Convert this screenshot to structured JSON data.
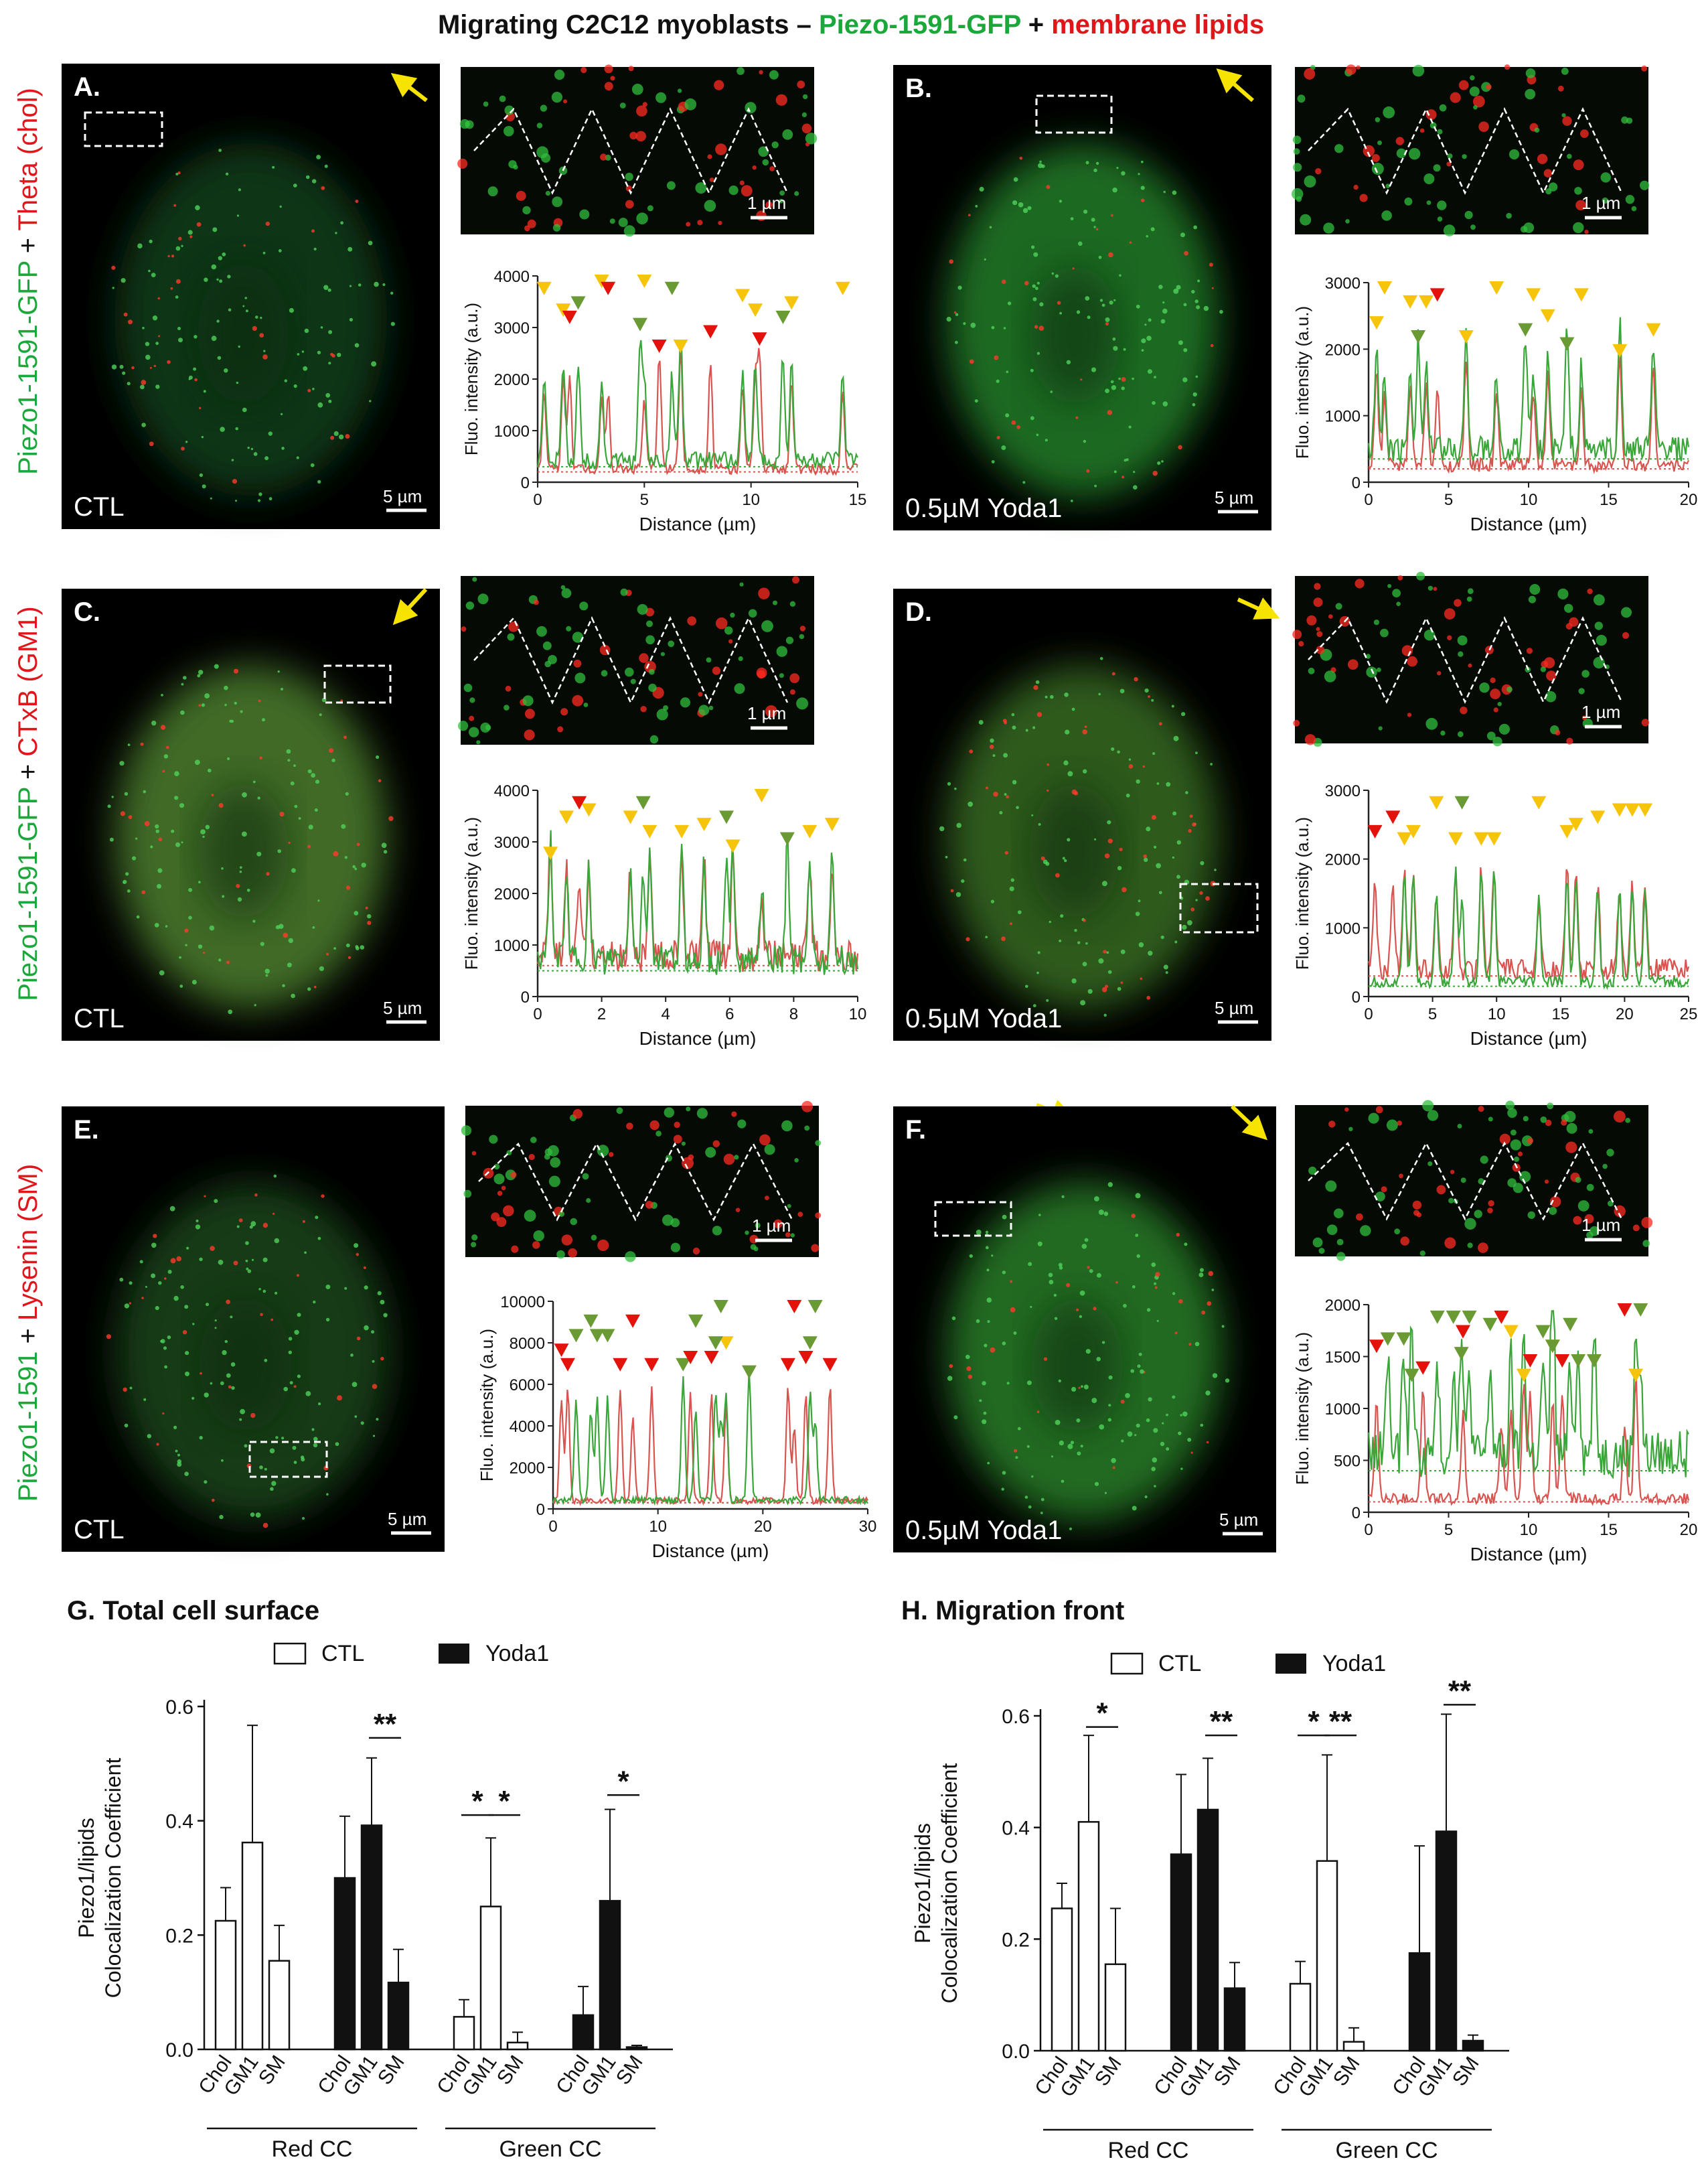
{
  "figure": {
    "title_parts": [
      {
        "text": "Migrating C2C12 myoblasts – ",
        "color": "#111111"
      },
      {
        "text": "Piezo-1591-GFP",
        "color": "#1aa83a"
      },
      {
        "text": " + ",
        "color": "#111111"
      },
      {
        "text": "membrane lipids",
        "color": "#e0161b"
      }
    ],
    "colors": {
      "green": "#2fa83c",
      "red": "#e0161b",
      "yellow": "#f6c40a",
      "marker_green": "#6a9a34",
      "marker_red": "#e3120b",
      "profile_red": "#d9534f",
      "profile_green": "#3aa63a"
    }
  },
  "row_labels": [
    {
      "parts": [
        {
          "text": "Piezo1-1591-GFP",
          "color": "#1aa83a"
        },
        {
          "text": " + ",
          "color": "#111111"
        },
        {
          "text": "Theta (chol)",
          "color": "#e0161b"
        }
      ]
    },
    {
      "parts": [
        {
          "text": "Piezo1-1591-GFP",
          "color": "#1aa83a"
        },
        {
          "text": " + ",
          "color": "#111111"
        },
        {
          "text": "CTxB (GM1)",
          "color": "#e0161b"
        }
      ]
    },
    {
      "parts": [
        {
          "text": "Piezo1-1591",
          "color": "#1aa83a"
        },
        {
          "text": " + ",
          "color": "#111111"
        },
        {
          "text": "Lysenin (SM)",
          "color": "#e0161b"
        }
      ]
    }
  ],
  "panels": [
    {
      "id": "A",
      "letter": "A.",
      "condition": "CTL",
      "scale_main": "5 µm",
      "scale_inset": "1 µm",
      "tint": "#0f3514"
    },
    {
      "id": "B",
      "letter": "B.",
      "condition": "0.5µM Yoda1",
      "scale_main": "5 µm",
      "scale_inset": "1 µm",
      "tint": "#1d6a23"
    },
    {
      "id": "C",
      "letter": "C.",
      "condition": "CTL",
      "scale_main": "5 µm",
      "scale_inset": "1 µm",
      "tint": "#3f6a26"
    },
    {
      "id": "D",
      "letter": "D.",
      "condition": "0.5µM Yoda1",
      "scale_main": "5 µm",
      "scale_inset": "1 µm",
      "tint": "#2f5a1f"
    },
    {
      "id": "E",
      "letter": "E.",
      "condition": "CTL",
      "scale_main": "5 µm",
      "scale_inset": "1 µm",
      "tint": "#123a16"
    },
    {
      "id": "F",
      "letter": "F.",
      "condition": "0.5µM Yoda1",
      "scale_main": "5 µm",
      "scale_inset": "1 µm",
      "tint": "#226a22"
    }
  ],
  "chart_data": [
    {
      "id": "profile-A",
      "type": "line",
      "xlabel": "Distance (µm)",
      "ylabel": "Fluo. intensity (a.u.)",
      "xlim": [
        0,
        15
      ],
      "ylim": [
        0,
        4000
      ],
      "xticks": [
        0,
        5,
        10,
        15
      ],
      "yticks": [
        0,
        1000,
        2000,
        3000,
        4000
      ],
      "threshold_green": 300,
      "threshold_red": 200,
      "markers_yellow": [
        0.3,
        1.2,
        3,
        5,
        6.7,
        9.6,
        10.2,
        11.9,
        14.3
      ],
      "markers_green": [
        1.9,
        4.8,
        6.3,
        11.5
      ],
      "markers_red": [
        1.5,
        3.3,
        5.7,
        8.1,
        10.4
      ]
    },
    {
      "id": "profile-B",
      "type": "line",
      "xlabel": "Distance (µm)",
      "ylabel": "Fluo. intensity (a.u.)",
      "xlim": [
        0,
        20
      ],
      "ylim": [
        0,
        3000
      ],
      "xticks": [
        0,
        5,
        10,
        15,
        20
      ],
      "yticks": [
        0,
        1000,
        2000,
        3000
      ],
      "threshold_green": 350,
      "threshold_red": 200,
      "markers_yellow": [
        0.5,
        1,
        2.6,
        3.6,
        6.1,
        8,
        10.3,
        11.2,
        13.3,
        15.7,
        17.8
      ],
      "markers_green": [
        3.1,
        9.8,
        12.4
      ],
      "markers_red": [
        4.3
      ]
    },
    {
      "id": "profile-C",
      "type": "line",
      "xlabel": "Distance (µm)",
      "ylabel": "Fluo. intensity (a.u.)",
      "xlim": [
        0,
        10
      ],
      "ylim": [
        0,
        4000
      ],
      "xticks": [
        0,
        2,
        4,
        6,
        8,
        10
      ],
      "yticks": [
        0,
        1000,
        2000,
        3000,
        4000
      ],
      "threshold_green": 500,
      "threshold_red": 600,
      "markers_yellow": [
        0.4,
        0.9,
        1.6,
        2.9,
        3.5,
        4.5,
        5.2,
        6.1,
        7,
        8.5,
        9.2
      ],
      "markers_green": [
        3.3,
        5.9,
        7.8
      ],
      "markers_red": [
        1.3
      ]
    },
    {
      "id": "profile-D",
      "type": "line",
      "xlabel": "Distance (µm)",
      "ylabel": "Fluo. intensity (a.u.)",
      "xlim": [
        0,
        25
      ],
      "ylim": [
        0,
        3000
      ],
      "xticks": [
        0,
        5,
        10,
        15,
        20,
        25
      ],
      "yticks": [
        0,
        1000,
        2000,
        3000
      ],
      "threshold_green": 150,
      "threshold_red": 300,
      "markers_yellow": [
        2.8,
        3.5,
        5.3,
        6.8,
        8.8,
        9.8,
        13.3,
        15.5,
        16.2,
        17.9,
        19.6,
        20.6,
        21.6
      ],
      "markers_green": [
        7.3
      ],
      "markers_red": [
        0.5,
        1.9
      ]
    },
    {
      "id": "profile-E",
      "type": "line",
      "xlabel": "Distance (µm)",
      "ylabel": "Fluo. intensity (a.u.)",
      "xlim": [
        0,
        30
      ],
      "ylim": [
        0,
        10000
      ],
      "xticks": [
        0,
        10,
        20,
        30
      ],
      "yticks": [
        0,
        2000,
        4000,
        6000,
        8000,
        10000
      ],
      "threshold_green": 300,
      "threshold_red": 300,
      "markers_yellow": [
        16.5
      ],
      "markers_green": [
        2.2,
        3.6,
        4.2,
        5.2,
        12.4,
        13.6,
        15.5,
        16,
        18.7,
        24.5,
        25
      ],
      "markers_red": [
        0.8,
        1.4,
        6.4,
        7.6,
        9.4,
        13.1,
        15.1,
        22.4,
        23,
        24.1,
        26.4
      ]
    },
    {
      "id": "profile-F",
      "type": "line",
      "xlabel": "Distance (µm)",
      "ylabel": "Fluo. intensity (a.u.)",
      "xlim": [
        0,
        20
      ],
      "ylim": [
        0,
        2000
      ],
      "xticks": [
        0,
        5,
        10,
        15,
        20
      ],
      "yticks": [
        0,
        500,
        1000,
        1500,
        2000
      ],
      "threshold_green": 400,
      "threshold_red": 100,
      "markers_yellow": [
        8.9,
        9.7,
        11.5,
        16.7
      ],
      "markers_green": [
        1.2,
        2.2,
        2.7,
        4.3,
        5.3,
        5.8,
        6.3,
        7.6,
        10.9,
        11.5,
        12.6,
        13.1,
        14.1,
        17
      ],
      "markers_red": [
        0.5,
        3.4,
        5.9,
        8.3,
        10.1,
        12.1,
        16
      ],
      "markers_extra_yellow": [],
      "note": ""
    },
    {
      "id": "bar-G",
      "type": "bar",
      "title": "G. Total cell surface",
      "ylabel": "Piezo1/lipids Colocalization Coefficient",
      "ylim": [
        0,
        0.6
      ],
      "yticks": [
        "0.0",
        "0.2",
        "0.4",
        "0.6"
      ],
      "legend": [
        "CTL",
        "Yoda1"
      ],
      "categories": [
        "Chol",
        "GM1",
        "SM",
        "Chol",
        "GM1",
        "SM",
        "Chol",
        "GM1",
        "SM",
        "Chol",
        "GM1",
        "SM"
      ],
      "groups": [
        "Red CC",
        "Green CC"
      ],
      "values": [
        0.225,
        0.362,
        0.155,
        0.3,
        0.392,
        0.117,
        0.057,
        0.25,
        0.012,
        0.06,
        0.26,
        0.004
      ],
      "errors": [
        0.058,
        0.205,
        0.062,
        0.108,
        0.118,
        0.058,
        0.03,
        0.12,
        0.018,
        0.05,
        0.16,
        0.003
      ],
      "fills": [
        "CTL",
        "CTL",
        "CTL",
        "Yoda1",
        "Yoda1",
        "Yoda1",
        "CTL",
        "CTL",
        "CTL",
        "Yoda1",
        "Yoda1",
        "Yoda1"
      ],
      "significance": [
        {
          "from": 4,
          "to": 5,
          "label": "**",
          "y": 0.545
        },
        {
          "from": 6,
          "to": 7,
          "label": "*",
          "y": 0.41
        },
        {
          "from": 7,
          "to": 8,
          "label": "*",
          "y": 0.41
        },
        {
          "from": 10,
          "to": 11,
          "label": "*",
          "y": 0.445
        }
      ]
    },
    {
      "id": "bar-H",
      "type": "bar",
      "title": "H. Migration front",
      "ylabel": "Piezo1/lipids Colocalization Coefficient",
      "ylim": [
        0,
        0.6
      ],
      "yticks": [
        "0.0",
        "0.2",
        "0.4",
        "0.6"
      ],
      "legend": [
        "CTL",
        "Yoda1"
      ],
      "categories": [
        "Chol",
        "GM1",
        "SM",
        "Chol",
        "GM1",
        "SM",
        "Chol",
        "GM1",
        "SM",
        "Chol",
        "GM1",
        "SM"
      ],
      "groups": [
        "Red CC",
        "Green CC"
      ],
      "values": [
        0.255,
        0.41,
        0.155,
        0.352,
        0.432,
        0.112,
        0.12,
        0.34,
        0.016,
        0.175,
        0.393,
        0.018
      ],
      "errors": [
        0.045,
        0.155,
        0.1,
        0.143,
        0.092,
        0.046,
        0.04,
        0.19,
        0.025,
        0.192,
        0.21,
        0.01
      ],
      "fills": [
        "CTL",
        "CTL",
        "CTL",
        "Yoda1",
        "Yoda1",
        "Yoda1",
        "CTL",
        "CTL",
        "CTL",
        "Yoda1",
        "Yoda1",
        "Yoda1"
      ],
      "significance": [
        {
          "from": 1,
          "to": 2,
          "label": "*",
          "y": 0.58
        },
        {
          "from": 4,
          "to": 5,
          "label": "**",
          "y": 0.565
        },
        {
          "from": 6,
          "to": 7,
          "label": "*",
          "y": 0.565
        },
        {
          "from": 7,
          "to": 8,
          "label": "**",
          "y": 0.565
        },
        {
          "from": 10,
          "to": 11,
          "label": "**",
          "y": 0.62
        }
      ]
    }
  ]
}
